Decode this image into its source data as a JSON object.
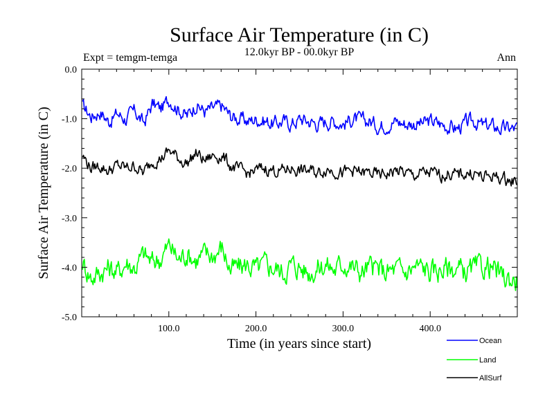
{
  "chart_data": {
    "type": "line",
    "title": "Surface Air Temperature (in C)",
    "subtitle": "12.0kyr BP - 00.0kyr BP",
    "left_annotation": "Expt = temgm-temga",
    "right_annotation": "Ann",
    "xlabel": "Time (in years since start)",
    "ylabel": "Surface Air Temperature (in C)",
    "xlim": [
      0,
      500
    ],
    "ylim": [
      -5.0,
      0.0
    ],
    "xticks": [
      100,
      200,
      300,
      400
    ],
    "xtick_labels": [
      "100.0",
      "200.0",
      "300.0",
      "400.0"
    ],
    "yticks": [
      0,
      -1,
      -2,
      -3,
      -4,
      -5
    ],
    "ytick_labels": [
      "0.0",
      "-1.0",
      "-2.0",
      "-3.0",
      "-4.0",
      "-5.0"
    ],
    "grid": false,
    "legend_position": "bottom-right, below plot",
    "x_step": 10,
    "series": [
      {
        "name": "Ocean",
        "color": "#0000ff",
        "values": [
          -0.75,
          -0.95,
          -0.85,
          -1.05,
          -0.9,
          -1.0,
          -0.85,
          -1.1,
          -0.7,
          -0.8,
          -0.6,
          -0.8,
          -0.95,
          -0.7,
          -0.85,
          -0.8,
          -0.75,
          -0.95,
          -1.0,
          -1.05,
          -1.0,
          -1.05,
          -1.1,
          -1.05,
          -1.1,
          -1.0,
          -1.05,
          -1.1,
          -1.05,
          -1.05,
          -1.1,
          -1.0,
          -1.05,
          -1.05,
          -1.15,
          -1.1,
          -1.05,
          -1.1,
          -1.1,
          -1.1,
          -1.05,
          -1.1,
          -1.15,
          -1.2,
          -1.1,
          -1.05,
          -1.15,
          -1.15,
          -1.2,
          -1.2
        ]
      },
      {
        "name": "Land",
        "color": "#00ff00",
        "values": [
          -3.9,
          -4.2,
          -4.1,
          -4.0,
          -4.1,
          -3.9,
          -4.0,
          -3.75,
          -3.9,
          -3.8,
          -3.55,
          -3.85,
          -3.7,
          -3.85,
          -3.75,
          -3.75,
          -3.6,
          -4.05,
          -4.0,
          -3.95,
          -4.05,
          -3.95,
          -4.0,
          -4.1,
          -3.95,
          -4.0,
          -4.1,
          -4.0,
          -3.95,
          -4.05,
          -3.9,
          -4.0,
          -4.1,
          -4.0,
          -4.05,
          -4.1,
          -4.05,
          -4.1,
          -4.0,
          -4.0,
          -4.1,
          -4.05,
          -4.0,
          -4.05,
          -4.1,
          -4.05,
          -4.0,
          -4.0,
          -4.2,
          -4.25
        ]
      },
      {
        "name": "AllSurf",
        "color": "#000000",
        "values": [
          -1.75,
          -2.0,
          -1.95,
          -2.05,
          -1.95,
          -2.0,
          -1.95,
          -2.1,
          -1.85,
          -1.8,
          -1.65,
          -1.8,
          -1.9,
          -1.7,
          -1.85,
          -1.75,
          -1.75,
          -1.95,
          -2.05,
          -2.1,
          -2.05,
          -2.0,
          -2.05,
          -2.05,
          -2.0,
          -2.05,
          -2.05,
          -2.1,
          -2.0,
          -2.05,
          -2.1,
          -2.05,
          -2.1,
          -2.1,
          -2.15,
          -2.1,
          -2.05,
          -2.1,
          -2.15,
          -2.1,
          -2.1,
          -2.15,
          -2.1,
          -2.15,
          -2.1,
          -2.1,
          -2.2,
          -2.15,
          -2.2,
          -2.25
        ]
      }
    ]
  }
}
